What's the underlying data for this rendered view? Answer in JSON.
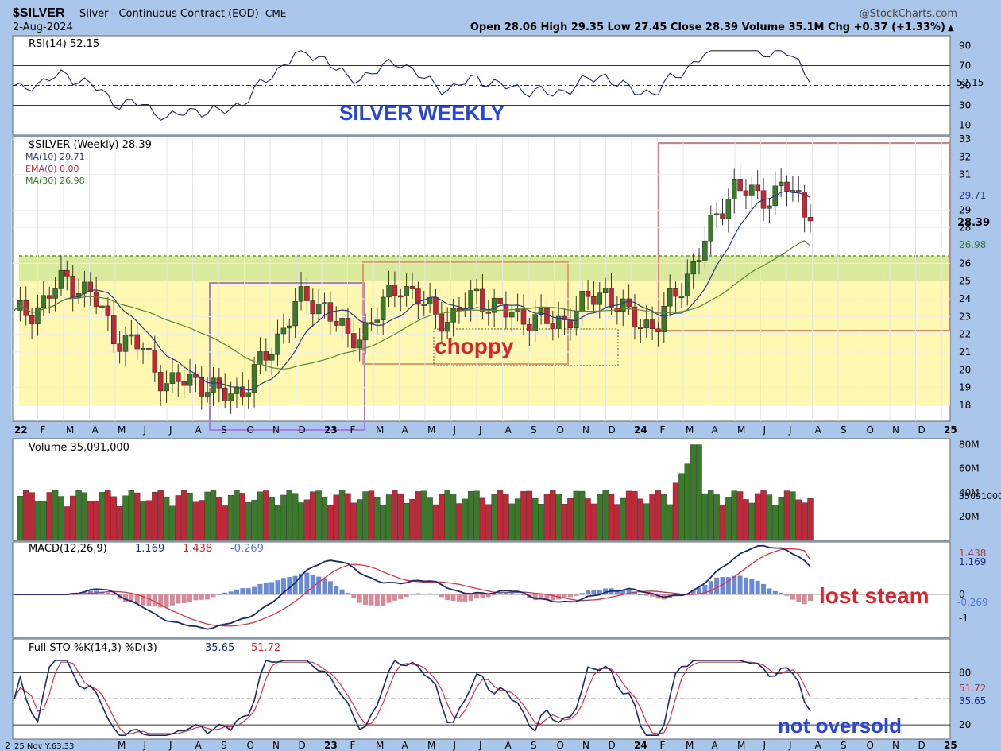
{
  "header": {
    "symbol": "$SILVER",
    "name": "Silver - Continuous Contract (EOD)",
    "exchange": "CME",
    "date": "2-Aug-2024",
    "brand": "@StockCharts.com",
    "ohlc": "Open 28.06  High 29.35  Low 27.45  Close 28.39  Volume 35.1M  Chg +0.37 (+1.33%)"
  },
  "panels": {
    "rsi": {
      "legend": "RSI(14) 52.15",
      "ticks": [
        "90",
        "70",
        "50",
        "30",
        "10"
      ],
      "last": "52.15",
      "annotation": "SILVER WEEKLY"
    },
    "price": {
      "legend": "$SILVER (Weekly) 28.39",
      "ma10": "MA(10) 29.71",
      "ema0": "EMA(0) 0.00",
      "ma30": "MA(30) 26.98",
      "ticks": [
        "33",
        "32",
        "31",
        "29",
        "28",
        "26",
        "25",
        "24",
        "23",
        "22",
        "21",
        "20",
        "19",
        "18"
      ],
      "tag_ma10": "29.71",
      "tag_close": "28.39",
      "tag_ma30": "26.98",
      "annotation": "choppy"
    },
    "volume": {
      "legend": "Volume 35,091,000",
      "ticks": [
        "80M",
        "60M",
        "40M",
        "20M"
      ],
      "last": "35091000"
    },
    "macd": {
      "legend_a": "MACD(12,26,9)",
      "v1": "1.169",
      "v2": "1.438",
      "v3": "-0.269",
      "ticks": [
        "0",
        "-1"
      ],
      "tag1": "1.438",
      "tag2": "1.169",
      "tag3": "-0.269",
      "annotation": "lost steam"
    },
    "sto": {
      "legend_a": "Full STO %K(14,3) %D(3)",
      "v1": "35.65",
      "v2": "51.72",
      "ticks": [
        "80",
        "20"
      ],
      "tag1": "51.72",
      "tag2": "35.65",
      "annotation": "not oversold"
    }
  },
  "x_axis": {
    "labels": [
      "22",
      "F",
      "M",
      "A",
      "M",
      "J",
      "J",
      "A",
      "S",
      "O",
      "N",
      "D",
      "23",
      "F",
      "M",
      "A",
      "M",
      "J",
      "J",
      "A",
      "S",
      "O",
      "N",
      "D",
      "24",
      "F",
      "M",
      "A",
      "M",
      "J",
      "J",
      "A",
      "S",
      "O",
      "N",
      "D",
      "25"
    ],
    "bottom_labels": [
      "M",
      "J",
      "J",
      "A",
      "S",
      "O",
      "N",
      "D",
      "23",
      "F",
      "M",
      "A",
      "M",
      "J",
      "J",
      "A",
      "S",
      "O",
      "N",
      "D",
      "24",
      "F",
      "M",
      "A",
      "M",
      "J",
      "J",
      "A",
      "S",
      "O",
      "N",
      "D",
      "25"
    ],
    "bottom_left": "2",
    "cursor_readout": "25 Nov Y:63.33"
  },
  "colors": {
    "up": "#3a7a2a",
    "down": "#c0283a",
    "ma10": "#2a3a8a",
    "ma30": "#5a8a3a",
    "macd": "#1a2a6a",
    "signal": "#e03040",
    "hist": "#6a8ad8",
    "zone": "#fff7a8",
    "band": "#d6e89a"
  },
  "chart_data": {
    "type": "candlestick",
    "title": "$SILVER Silver - Continuous Contract (EOD) CME",
    "timeframe": "Weekly, Jan 2022 - Aug 2024",
    "ylim": [
      17.5,
      33.5
    ],
    "close_path": [
      [
        "2022-01",
        23.0
      ],
      [
        "2022-02",
        23.6
      ],
      [
        "2022-03",
        25.2
      ],
      [
        "2022-04",
        24.2
      ],
      [
        "2022-05",
        21.8
      ],
      [
        "2022-06",
        21.2
      ],
      [
        "2022-07",
        19.0
      ],
      [
        "2022-08",
        19.6
      ],
      [
        "2022-09",
        18.5
      ],
      [
        "2022-10",
        19.0
      ],
      [
        "2022-11",
        21.2
      ],
      [
        "2022-12",
        23.8
      ],
      [
        "2023-01",
        23.8
      ],
      [
        "2023-02",
        21.6
      ],
      [
        "2023-03",
        22.8
      ],
      [
        "2023-04",
        25.0
      ],
      [
        "2023-05",
        23.5
      ],
      [
        "2023-06",
        22.8
      ],
      [
        "2023-07",
        24.3
      ],
      [
        "2023-08",
        23.2
      ],
      [
        "2023-09",
        23.0
      ],
      [
        "2023-10",
        22.5
      ],
      [
        "2023-11",
        23.5
      ],
      [
        "2023-12",
        24.5
      ],
      [
        "2024-01",
        22.8
      ],
      [
        "2024-02",
        22.5
      ],
      [
        "2024-03",
        24.8
      ],
      [
        "2024-04",
        27.5
      ],
      [
        "2024-05",
        30.5
      ],
      [
        "2024-06",
        29.5
      ],
      [
        "2024-07",
        30.5
      ],
      [
        "2024-08",
        28.39
      ]
    ],
    "rsi_last": 52.15,
    "ma10_last": 29.71,
    "ma30_last": 26.98,
    "volume_last": 35091000,
    "macd_last": [
      1.169,
      1.438,
      -0.269
    ],
    "sto_last": [
      35.65,
      51.72
    ]
  }
}
